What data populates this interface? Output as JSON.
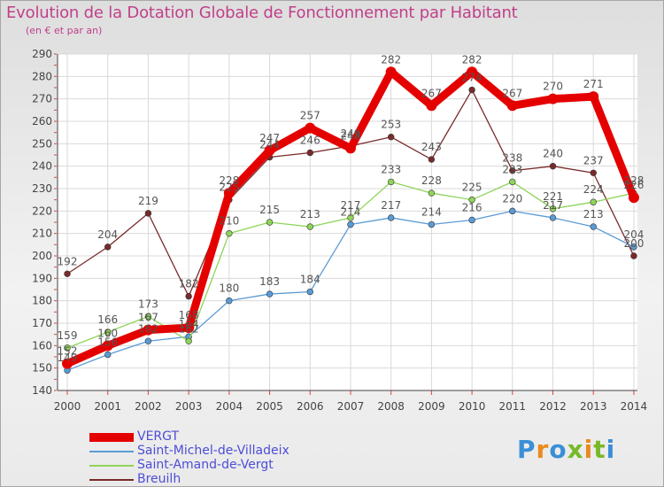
{
  "title": "Evolution de la Dotation Globale de Fonctionnement par Habitant",
  "subtitle": "(en € et par an)",
  "logo": {
    "text": "Proxiti",
    "colors": [
      "#3a8fd6",
      "#ea8a1f",
      "#3a8fd6",
      "#78b928",
      "#ea8a1f",
      "#78b928",
      "#3a8fd6"
    ]
  },
  "chart_data": {
    "type": "line",
    "title": "Evolution de la Dotation Globale de Fonctionnement par Habitant",
    "subtitle": "(en € et par an)",
    "xlabel": "",
    "ylabel": "",
    "ylim": [
      140,
      290
    ],
    "yticks": [
      140,
      150,
      160,
      170,
      180,
      190,
      200,
      210,
      220,
      230,
      240,
      250,
      260,
      270,
      280,
      290
    ],
    "categories": [
      "2000",
      "2001",
      "2002",
      "2003",
      "2004",
      "2005",
      "2006",
      "2007",
      "2008",
      "2009",
      "2010",
      "2011",
      "2012",
      "2013",
      "2014"
    ],
    "grid": true,
    "legend_position": "bottom-left",
    "series": [
      {
        "name": "VERGT",
        "color": "#e50000",
        "values": [
          152,
          160,
          167,
          168,
          228,
          247,
          257,
          248,
          282,
          267,
          282,
          267,
          270,
          271,
          226
        ]
      },
      {
        "name": "Saint-Michel-de-Villadeix",
        "color": "#5b9bd5",
        "values": [
          149,
          156,
          162,
          164,
          180,
          183,
          184,
          214,
          217,
          214,
          216,
          220,
          217,
          213,
          204
        ]
      },
      {
        "name": "Saint-Amand-de-Vergt",
        "color": "#8fd45a",
        "values": [
          159,
          166,
          173,
          162,
          210,
          215,
          213,
          217,
          233,
          228,
          225,
          233,
          221,
          224,
          228
        ]
      },
      {
        "name": "Breuilh",
        "color": "#7a2a2a",
        "values": [
          192,
          204,
          219,
          182,
          225,
          244,
          246,
          249,
          253,
          243,
          274,
          238,
          240,
          237,
          200
        ]
      }
    ]
  }
}
